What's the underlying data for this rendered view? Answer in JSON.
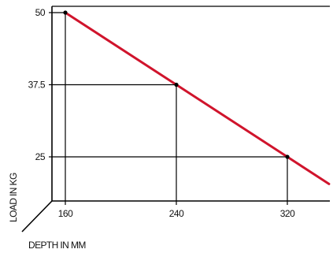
{
  "chart_data": {
    "type": "line",
    "xlabel": "DEPTH IN MM",
    "ylabel": "LOAD IN KG",
    "x_ticks": [
      "160",
      "240",
      "320"
    ],
    "y_ticks": [
      "50",
      "37.5",
      "25"
    ],
    "xlim": [
      150,
      350
    ],
    "ylim": [
      14,
      52
    ],
    "series": [
      {
        "color": "#d0142c",
        "points": [
          {
            "x": 160,
            "y": 50
          },
          {
            "x": 240,
            "y": 37.5
          },
          {
            "x": 320,
            "y": 25
          },
          {
            "x": 350,
            "y": 20.3
          }
        ]
      }
    ],
    "reference_points": [
      {
        "x": 160,
        "y": 50
      },
      {
        "x": 240,
        "y": 37.5
      },
      {
        "x": 320,
        "y": 25
      }
    ],
    "grid": false
  }
}
